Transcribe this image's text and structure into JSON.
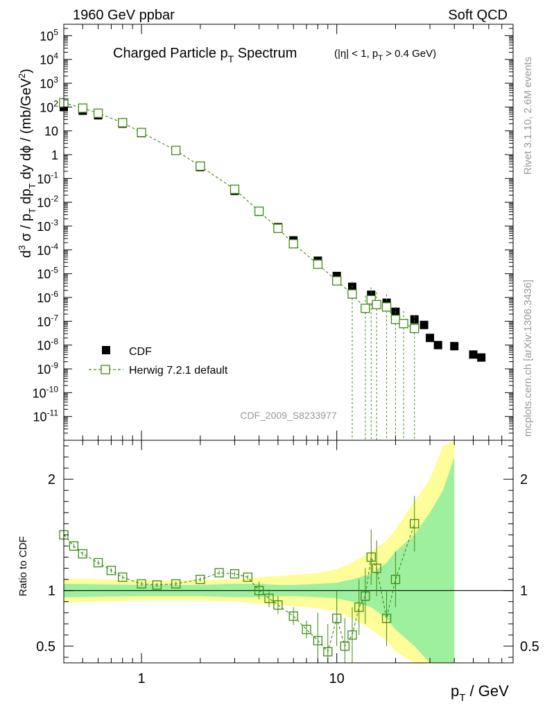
{
  "header": {
    "left": "1960 GeV ppbar",
    "right": "Soft QCD"
  },
  "side": {
    "rivet": "Rivet 3.1.10,  2.6M events",
    "mcplots": "mcplots.cern.ch [arXiv:1306.3436]"
  },
  "colors": {
    "data": "#000000",
    "mc": "#3a8a10",
    "band_inner": "#9ef09e",
    "band_outer": "#fdfd99"
  },
  "chart_data": [
    {
      "type": "scatter",
      "title": "Charged Particle p_T Spectrum",
      "title_main": "Charged Particle p",
      "title_sub": "T",
      "title_word": "Spectrum",
      "title_cut": "(|η| < 1, p",
      "title_cut_sub": "T",
      "title_cut_end": " > 0.4 GeV)",
      "analysis": "CDF_2009_S8233977",
      "xlabel": "p_T / GeV",
      "xlabel_main": "p",
      "xlabel_sub": "T",
      "xlabel_unit": " / GeV",
      "ylabel": "d^3 σ / p_T dp_T dy dφ / (mb/GeV^2)",
      "xscale": "log",
      "yscale": "log",
      "xlim": [
        0.4,
        80
      ],
      "ylim": [
        1e-12,
        300000.0
      ],
      "x_ticks": [
        1,
        10
      ],
      "x_tick_labels": [
        "1",
        "10"
      ],
      "y_tick_labels": [
        "10^5",
        "10^4",
        "10^3",
        "10^2",
        "10",
        "1",
        "10^-1",
        "10^-2",
        "10^-3",
        "10^-4",
        "10^-5",
        "10^-6",
        "10^-7",
        "10^-8",
        "10^-9",
        "10^-10",
        "10^-11"
      ],
      "legend": {
        "position": "bottom-left",
        "entries": [
          "CDF",
          "Herwig 7.2.1 default"
        ]
      },
      "series": [
        {
          "name": "CDF",
          "marker": "filled-square",
          "x": [
            0.4,
            0.5,
            0.6,
            0.8,
            1.0,
            1.5,
            2.0,
            3.0,
            4.0,
            5.0,
            6.0,
            8.0,
            10.0,
            12.0,
            15.0,
            18.0,
            20.0,
            25.0,
            28.0,
            30.0,
            33.0,
            40.0,
            50.0,
            55.0
          ],
          "y": [
            100,
            70,
            45,
            20,
            8,
            1.5,
            0.3,
            0.03,
            0.004,
            0.0009,
            0.00025,
            3.5e-05,
            8e-06,
            2.8e-06,
            1.3e-06,
            6e-07,
            2.5e-07,
            1.2e-07,
            7e-08,
            2e-08,
            1e-08,
            9e-09,
            4e-09,
            3e-09
          ]
        },
        {
          "name": "Herwig 7.2.1 default",
          "marker": "open-square",
          "x": [
            0.4,
            0.5,
            0.6,
            0.8,
            1.0,
            1.5,
            2.0,
            3.0,
            4.0,
            5.0,
            6.0,
            8.0,
            10.0,
            12.0,
            14.0,
            15.0,
            16.0,
            18.0,
            20.0,
            22.0,
            25.0
          ],
          "y": [
            150,
            90,
            55,
            22,
            8.5,
            1.5,
            0.33,
            0.035,
            0.0042,
            0.0008,
            0.00018,
            2.5e-05,
            5e-06,
            1.4e-06,
            3.5e-07,
            8e-07,
            5e-07,
            4e-07,
            1.2e-07,
            8e-08,
            5e-08
          ]
        }
      ]
    },
    {
      "type": "line",
      "title": "Ratio to CDF",
      "ylabel": "Ratio to CDF",
      "xlabel": "p_T / GeV",
      "xscale": "log",
      "xlim": [
        0.4,
        80
      ],
      "ylim": [
        0.35,
        2.35
      ],
      "y_ticks": [
        0.5,
        1,
        2
      ],
      "y_tick_labels": [
        "0.5",
        "1",
        "2"
      ],
      "bands": {
        "x": [
          0.4,
          1.0,
          2.0,
          3.0,
          4.0,
          5.0,
          6.0,
          8.0,
          10.0,
          12.0,
          15.0,
          18.0,
          20.0,
          25.0,
          30.0,
          35.0,
          40.0
        ],
        "inner_half_width": [
          0.06,
          0.05,
          0.05,
          0.06,
          0.06,
          0.05,
          0.05,
          0.06,
          0.07,
          0.1,
          0.15,
          0.25,
          0.35,
          0.5,
          0.7,
          0.9,
          1.2
        ],
        "outer_half_width": [
          0.11,
          0.09,
          0.09,
          0.1,
          0.12,
          0.13,
          0.14,
          0.16,
          0.19,
          0.25,
          0.35,
          0.45,
          0.55,
          0.8,
          1.0,
          1.3,
          1.5
        ]
      },
      "series": [
        {
          "name": "Herwig 7.2.1 default",
          "x": [
            0.4,
            0.45,
            0.5,
            0.6,
            0.7,
            0.8,
            1.0,
            1.2,
            1.5,
            2.0,
            2.5,
            3.0,
            3.5,
            4.0,
            4.5,
            5.0,
            6.0,
            7.0,
            8.0,
            9.0,
            10.0,
            11.0,
            12.0,
            13.0,
            14.0,
            15.0,
            16.0,
            18.0,
            20.0,
            25.0
          ],
          "y": [
            1.5,
            1.4,
            1.33,
            1.25,
            1.18,
            1.12,
            1.06,
            1.05,
            1.06,
            1.1,
            1.16,
            1.15,
            1.12,
            1.0,
            0.93,
            0.87,
            0.77,
            0.65,
            0.55,
            0.45,
            0.75,
            0.5,
            0.6,
            0.85,
            0.95,
            1.3,
            1.2,
            0.75,
            1.1,
            1.6
          ]
        }
      ]
    }
  ]
}
